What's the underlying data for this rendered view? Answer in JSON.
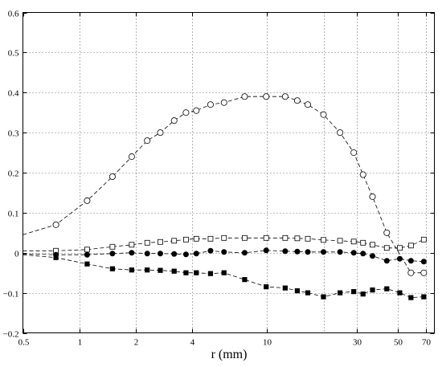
{
  "chart_data": {
    "type": "line",
    "xlabel": "r (mm)",
    "ylabel": "",
    "title": "",
    "xscale": "log",
    "xlim": [
      0.5,
      78
    ],
    "ylim": [
      -0.2,
      0.6
    ],
    "grid": true,
    "x_ticks": [
      0.5,
      1,
      2,
      4,
      10,
      30,
      50,
      70
    ],
    "x_tick_labels": [
      "0.5",
      "1",
      "2",
      "4",
      "10",
      "30",
      "50",
      "70"
    ],
    "x_grid": [
      1,
      2,
      4,
      10,
      20,
      30,
      50,
      70
    ],
    "y_ticks": [
      -0.2,
      -0.1,
      0,
      0.1,
      0.2,
      0.3,
      0.4,
      0.5,
      0.6
    ],
    "y_tick_labels": [
      "−0.2",
      "−0.1",
      "0",
      "0.1",
      "0.2",
      "0.3",
      "0.4",
      "0.5",
      "0.6"
    ],
    "series": [
      {
        "marker": "open-circle",
        "style": "dashed",
        "start": [
          0.5,
          0.045
        ],
        "x": [
          0.75,
          1.1,
          1.5,
          1.9,
          2.3,
          2.7,
          3.2,
          3.7,
          4.2,
          5.0,
          5.9,
          7.6,
          9.9,
          12.5,
          14.5,
          16.5,
          20.0,
          24.5,
          29.0,
          32.5,
          36.5,
          43.5,
          58.5,
          68.5
        ],
        "y": [
          0.07,
          0.13,
          0.19,
          0.24,
          0.28,
          0.3,
          0.33,
          0.35,
          0.355,
          0.37,
          0.375,
          0.39,
          0.39,
          0.39,
          0.38,
          0.37,
          0.345,
          0.3,
          0.25,
          0.195,
          0.14,
          0.05,
          -0.05,
          -0.05
        ]
      },
      {
        "marker": "open-square",
        "style": "dashed",
        "start": [
          0.5,
          0.005
        ],
        "x": [
          0.75,
          1.1,
          1.5,
          1.9,
          2.3,
          2.7,
          3.2,
          3.7,
          4.2,
          5.0,
          5.9,
          7.6,
          9.9,
          12.5,
          14.5,
          16.5,
          20.0,
          24.5,
          29.0,
          32.5,
          36.5,
          43.5,
          51.0,
          58.5,
          68.5
        ],
        "y": [
          0.005,
          0.008,
          0.015,
          0.02,
          0.025,
          0.027,
          0.03,
          0.033,
          0.035,
          0.035,
          0.037,
          0.037,
          0.037,
          0.037,
          0.036,
          0.035,
          0.032,
          0.03,
          0.028,
          0.025,
          0.02,
          0.012,
          0.012,
          0.018,
          0.033
        ]
      },
      {
        "marker": "filled-circle",
        "style": "dashed",
        "start": [
          0.5,
          -0.003
        ],
        "x": [
          0.75,
          1.1,
          1.5,
          1.9,
          2.3,
          2.7,
          3.2,
          3.7,
          4.2,
          5.0,
          5.9,
          7.6,
          9.9,
          12.5,
          14.5,
          16.5,
          20.0,
          24.5,
          29.0,
          32.5,
          36.5,
          43.5,
          51.0,
          58.5,
          68.5
        ],
        "y": [
          -0.005,
          -0.005,
          -0.002,
          0.0,
          -0.002,
          -0.002,
          -0.003,
          -0.004,
          -0.002,
          0.005,
          0.002,
          0.0,
          0.006,
          0.004,
          0.003,
          0.002,
          0.002,
          0.002,
          0.0,
          -0.002,
          -0.008,
          -0.02,
          -0.015,
          -0.02,
          -0.022
        ]
      },
      {
        "marker": "filled-square",
        "style": "dashed",
        "start": [
          0.5,
          -0.005
        ],
        "x": [
          0.75,
          1.1,
          1.5,
          1.9,
          2.3,
          2.7,
          3.2,
          3.7,
          4.2,
          5.0,
          5.9,
          7.6,
          9.9,
          12.5,
          14.5,
          16.5,
          20.0,
          24.5,
          29.0,
          32.5,
          36.5,
          43.5,
          51.0,
          58.5,
          68.5
        ],
        "y": [
          -0.012,
          -0.028,
          -0.04,
          -0.043,
          -0.043,
          -0.044,
          -0.046,
          -0.05,
          -0.05,
          -0.052,
          -0.05,
          -0.067,
          -0.085,
          -0.088,
          -0.095,
          -0.1,
          -0.11,
          -0.1,
          -0.097,
          -0.103,
          -0.093,
          -0.09,
          -0.1,
          -0.112,
          -0.11
        ]
      }
    ]
  }
}
